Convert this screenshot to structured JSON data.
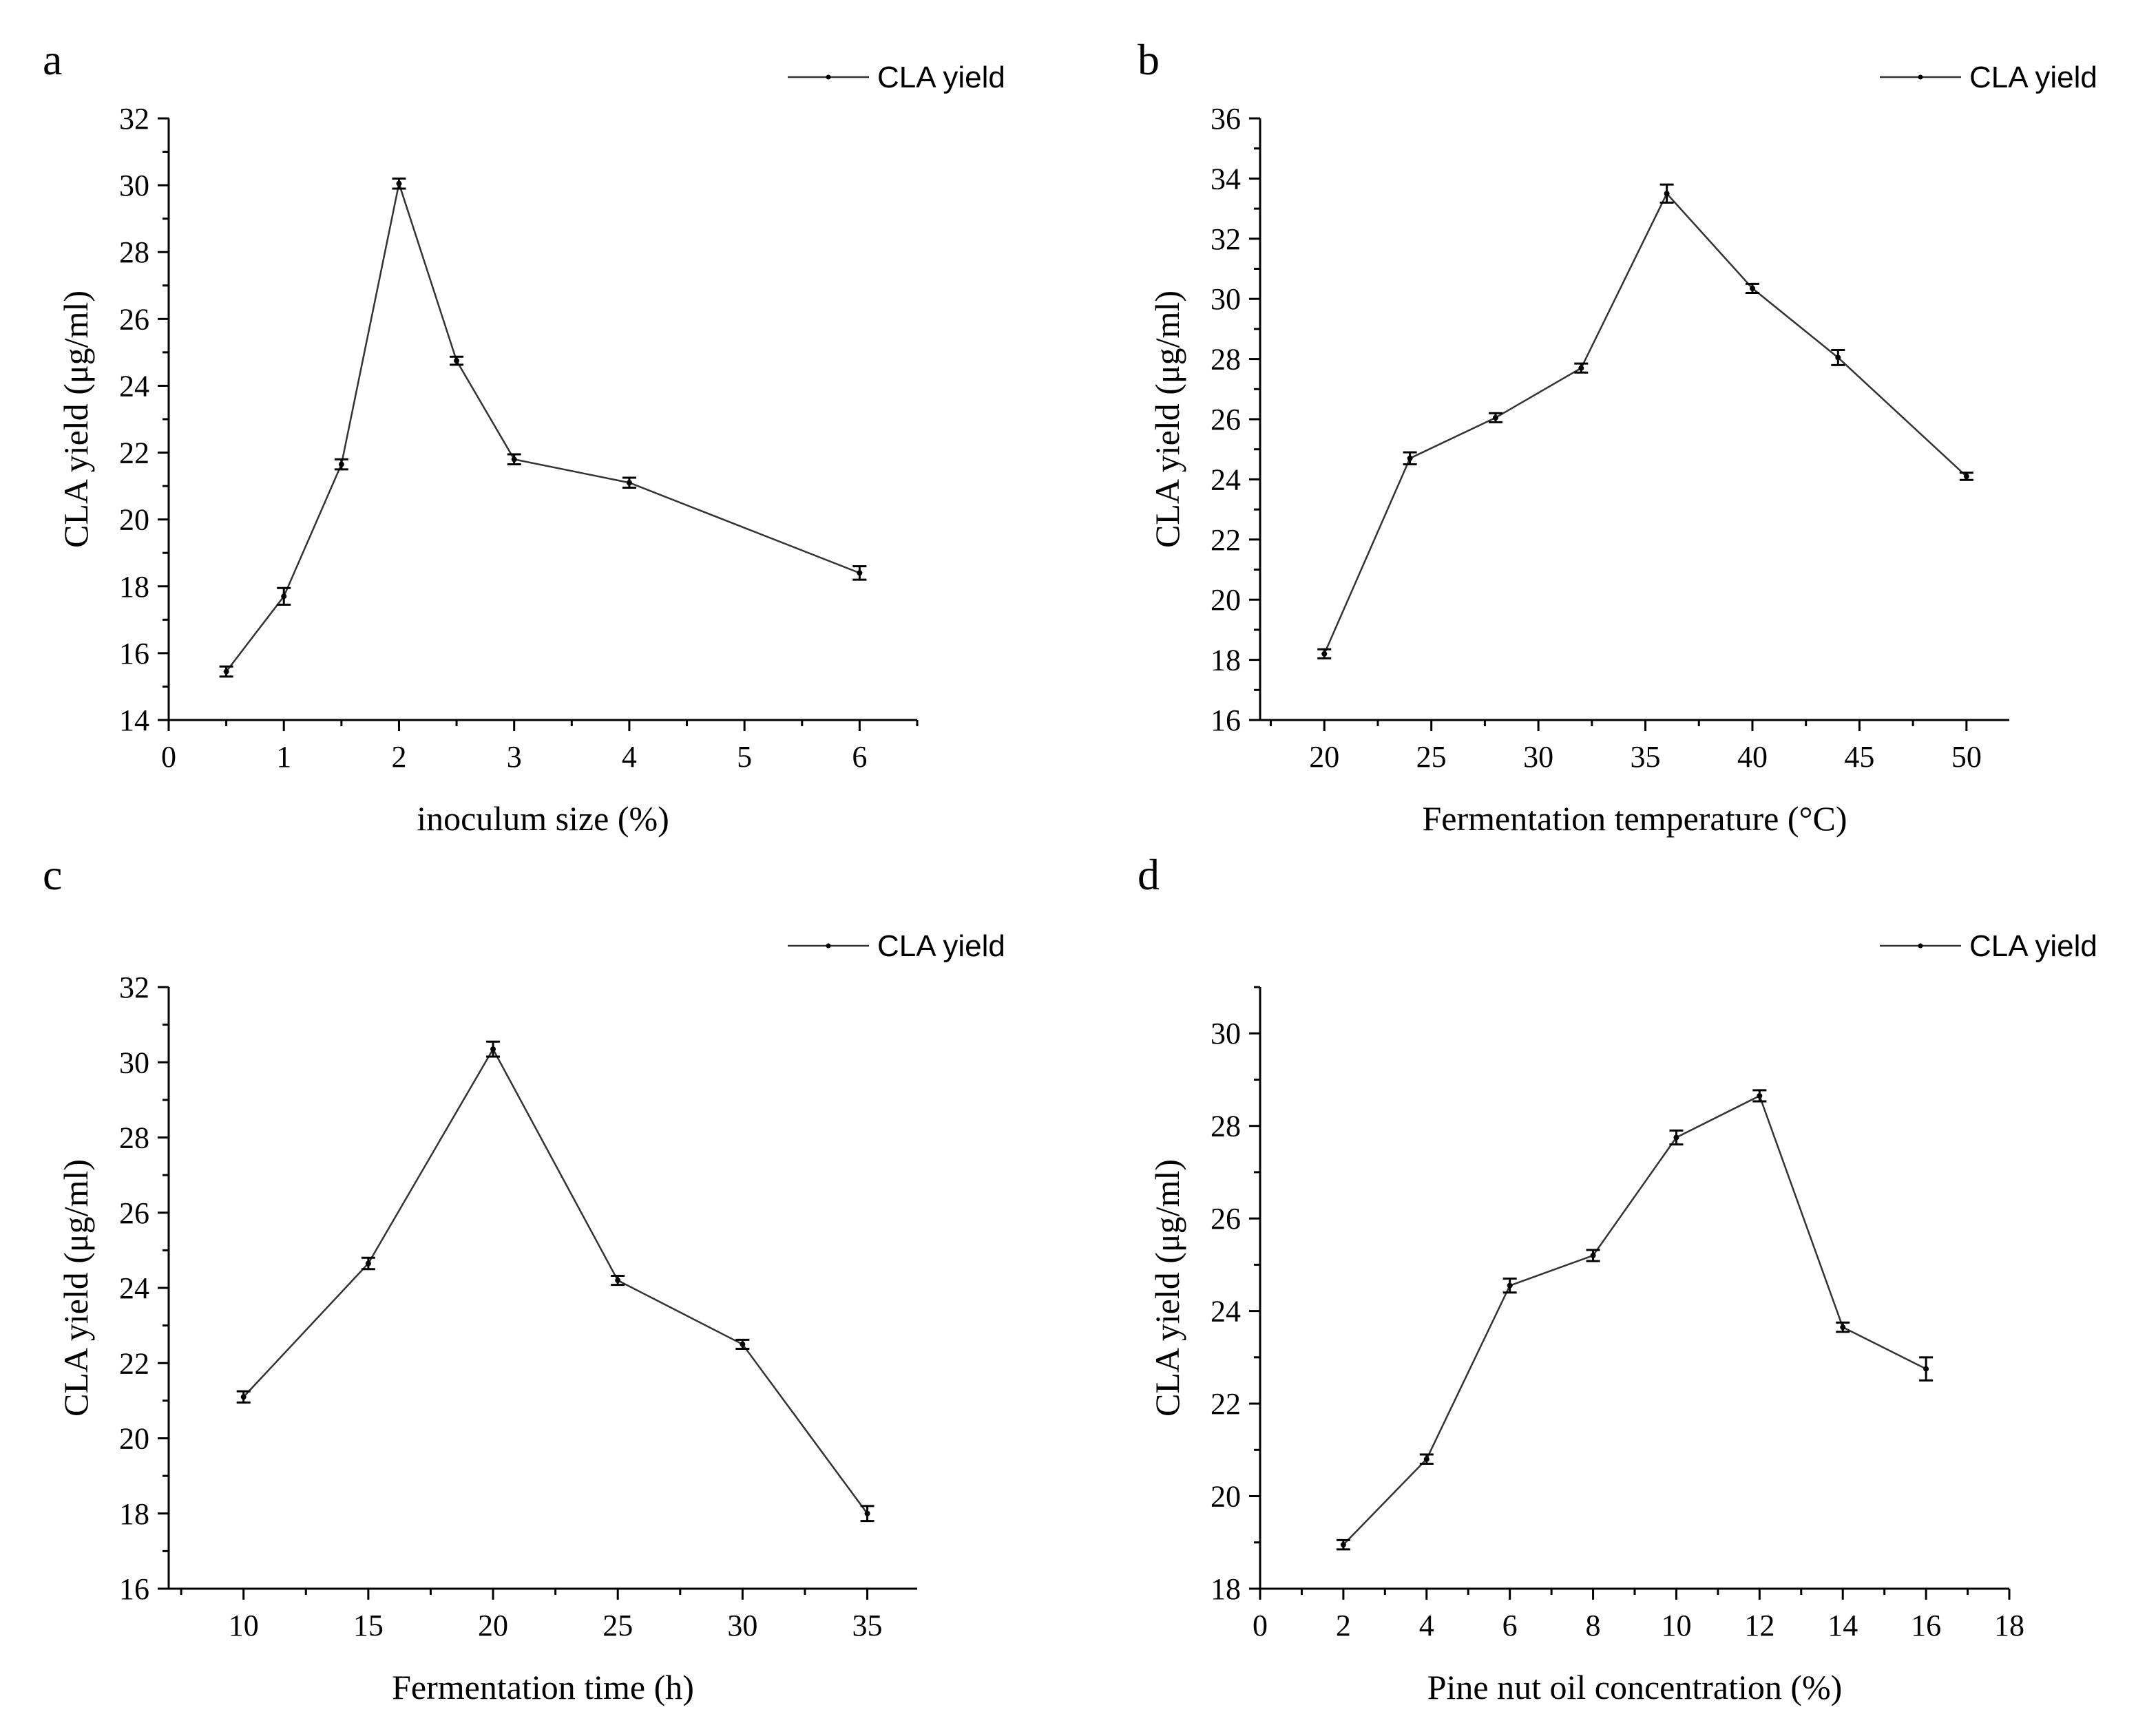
{
  "chart_data": [
    {
      "type": "line",
      "panel_label": "a",
      "legend": "CLA yield",
      "xlabel": "inoculum size (%)",
      "ylabel": "CLA yield (μg/ml)",
      "xlim": [
        0,
        6.5
      ],
      "ylim": [
        14,
        32
      ],
      "xticks": [
        0,
        1,
        2,
        3,
        4,
        5,
        6
      ],
      "yticks": [
        14,
        16,
        18,
        20,
        22,
        24,
        26,
        28,
        30,
        32
      ],
      "x": [
        0.5,
        1,
        1.5,
        2,
        2.5,
        3,
        4,
        6
      ],
      "y": [
        15.45,
        17.7,
        21.65,
        30.05,
        24.75,
        21.8,
        21.1,
        18.4
      ],
      "err": [
        0.15,
        0.25,
        0.15,
        0.15,
        0.12,
        0.15,
        0.15,
        0.2
      ]
    },
    {
      "type": "line",
      "panel_label": "b",
      "legend": "CLA yield",
      "xlabel": "Fermentation temperature (°C)",
      "ylabel": "CLA yield (μg/ml)",
      "xlim": [
        17,
        52
      ],
      "ylim": [
        16,
        36
      ],
      "xticks": [
        20,
        25,
        30,
        35,
        40,
        45,
        50
      ],
      "yticks": [
        16,
        18,
        20,
        22,
        24,
        26,
        28,
        30,
        32,
        34,
        36
      ],
      "x": [
        20,
        24,
        28,
        32,
        36,
        40,
        44,
        50
      ],
      "y": [
        18.2,
        24.7,
        26.05,
        27.7,
        33.5,
        30.35,
        28.05,
        24.1
      ],
      "err": [
        0.15,
        0.2,
        0.15,
        0.15,
        0.3,
        0.15,
        0.25,
        0.12
      ]
    },
    {
      "type": "line",
      "panel_label": "c",
      "legend": "CLA yield",
      "xlabel": "Fermentation time (h)",
      "ylabel": "CLA yield (μg/ml)",
      "xlim": [
        7,
        37
      ],
      "ylim": [
        16,
        32
      ],
      "xticks": [
        10,
        15,
        20,
        25,
        30,
        35
      ],
      "yticks": [
        16,
        18,
        20,
        22,
        24,
        26,
        28,
        30,
        32
      ],
      "x": [
        10,
        15,
        20,
        25,
        30,
        35
      ],
      "y": [
        21.1,
        24.65,
        30.35,
        24.2,
        22.5,
        18.0
      ],
      "err": [
        0.15,
        0.15,
        0.2,
        0.12,
        0.12,
        0.2
      ]
    },
    {
      "type": "line",
      "panel_label": "d",
      "legend": "CLA yield",
      "xlabel": "Pine nut oil concentration (%)",
      "ylabel": "CLA yield (μg/ml)",
      "xlim": [
        0,
        18
      ],
      "ylim": [
        18,
        31
      ],
      "xticks": [
        0,
        2,
        4,
        6,
        8,
        10,
        12,
        14,
        16,
        18
      ],
      "yticks": [
        18,
        20,
        22,
        24,
        26,
        28,
        30
      ],
      "x": [
        2,
        4,
        6,
        8,
        10,
        12,
        14,
        16
      ],
      "y": [
        18.95,
        20.8,
        24.55,
        25.2,
        27.75,
        28.65,
        23.65,
        22.75
      ],
      "err": [
        0.1,
        0.1,
        0.15,
        0.12,
        0.15,
        0.12,
        0.1,
        0.25
      ]
    }
  ]
}
